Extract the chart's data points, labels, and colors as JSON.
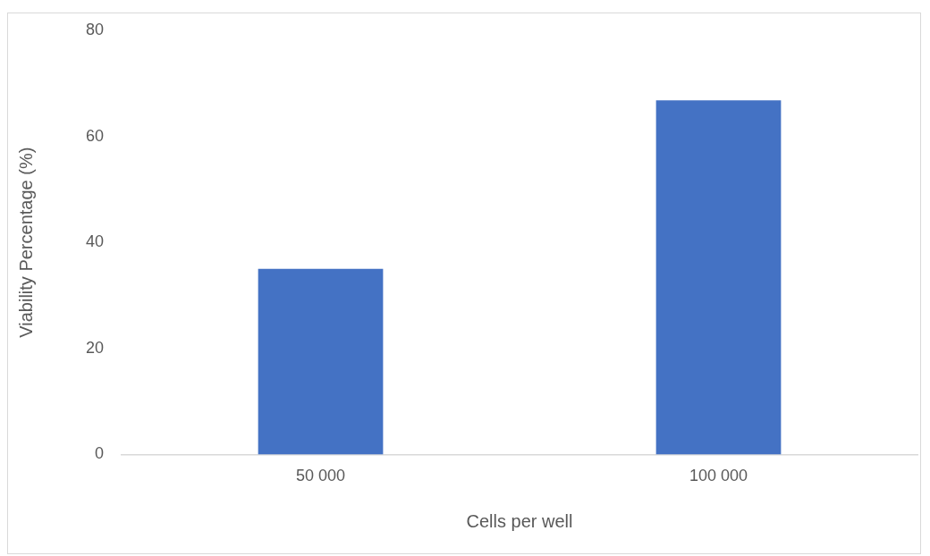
{
  "chart_data": {
    "type": "bar",
    "xlabel": "Cells per well",
    "ylabel": "Viability Percentage (%)",
    "categories": [
      "50 000",
      "100 000"
    ],
    "values": [
      35,
      66.8
    ],
    "color": "#4472c4",
    "ylim": [
      0,
      80
    ],
    "yticks": [
      0,
      20,
      40,
      60,
      80
    ],
    "grid": false,
    "legend": false
  }
}
